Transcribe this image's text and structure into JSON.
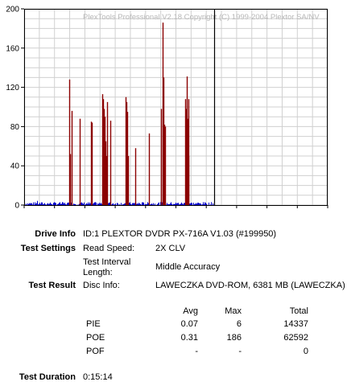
{
  "chart_data": {
    "type": "bar",
    "watermark": "PlexTools Professional V2.18 Copyright (C) 1999-2004 Plextor SA/NV",
    "xlim": [
      0,
      10
    ],
    "ylim": [
      0,
      200
    ],
    "x_ticks": [
      "0",
      "1",
      "2",
      "3",
      "4",
      "5",
      "6",
      "7",
      "8",
      "9",
      "10"
    ],
    "y_ticks": [
      "0",
      "40",
      "80",
      "120",
      "160",
      "200"
    ],
    "grid": true,
    "marker_x": 6.25,
    "colors": {
      "poe": "#8b0000",
      "pie": "#0000cc",
      "marker": "#000000",
      "grid": "#d0d0d0"
    },
    "series": [
      {
        "name": "POE",
        "x": [
          1.48,
          1.52,
          1.56,
          1.83,
          2.21,
          2.23,
          2.58,
          2.61,
          2.63,
          2.66,
          2.68,
          2.7,
          2.73,
          2.83,
          3.34,
          3.36,
          3.38,
          3.4,
          3.42,
          3.65,
          4.12,
          4.52,
          4.56,
          4.6,
          4.62,
          4.65,
          5.31,
          5.34,
          5.36,
          5.38,
          5.4,
          5.42
        ],
        "y": [
          128,
          52,
          96,
          88,
          85,
          84,
          113,
          108,
          98,
          90,
          65,
          50,
          105,
          86,
          110,
          90,
          105,
          95,
          50,
          58,
          73,
          98,
          186,
          130,
          82,
          80,
          108,
          98,
          131,
          88,
          108,
          50
        ]
      },
      {
        "name": "PIE",
        "x_range": [
          0,
          6.25
        ],
        "typical_max": 3,
        "peak": 6
      }
    ]
  },
  "info": {
    "drive_info_label": "Drive Info",
    "drive_info_value": "ID:1 PLEXTOR DVDR PX-716A V1.03 (#199950)",
    "test_settings_label": "Test Settings",
    "read_speed_key": "Read Speed:",
    "read_speed_value": "2X CLV",
    "interval_key_1": "Test Interval",
    "interval_key_2": "Length:",
    "interval_value": "Middle Accuracy",
    "test_result_label": "Test Result",
    "disc_info_key": "Disc Info:",
    "disc_info_value": "LAWECZKA DVD-ROM, 6381 MB (LAWECZKA)",
    "test_duration_label": "Test Duration",
    "test_duration_value": "0:15:14"
  },
  "results": {
    "headers": [
      "Avg",
      "Max",
      "Total"
    ],
    "rows": [
      {
        "name": "PIE",
        "avg": "0.07",
        "max": "6",
        "total": "14337"
      },
      {
        "name": "POE",
        "avg": "0.31",
        "max": "186",
        "total": "62592"
      },
      {
        "name": "POF",
        "avg": "-",
        "max": "-",
        "total": "0"
      }
    ]
  }
}
